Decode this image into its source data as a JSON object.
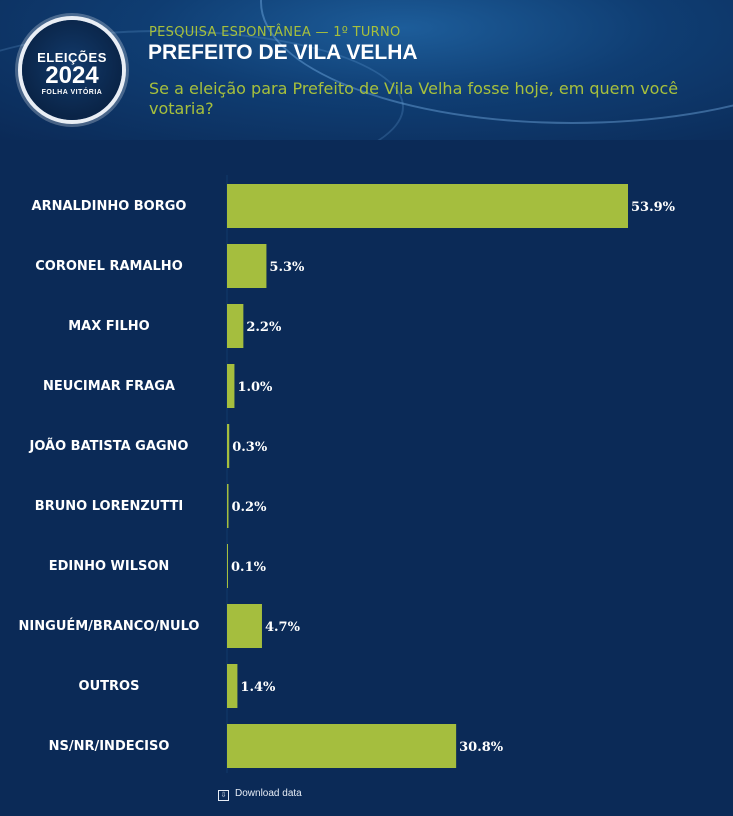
{
  "header": {
    "logo": {
      "line1": "ELEIÇÕES",
      "line2": "2024",
      "line3": "FOLHA VITÓRIA"
    },
    "kicker": "PESQUISA ESPONTÂNEA — 1º TURNO",
    "title": "PREFEITO DE VILA VELHA",
    "question": "Se a eleição para Prefeito de Vila Velha fosse hoje, em quem você votaria?"
  },
  "chart_data": {
    "type": "bar",
    "orientation": "horizontal",
    "categories": [
      "ARNALDINHO BORGO",
      "CORONEL RAMALHO",
      "MAX FILHO",
      "NEUCIMAR FRAGA",
      "JOÃO BATISTA GAGNO",
      "BRUNO LORENZUTTI",
      "EDINHO WILSON",
      "NINGUÉM/BRANCO/NULO",
      "OUTROS",
      "NS/NR/INDECISO"
    ],
    "values": [
      53.9,
      5.3,
      2.2,
      1.0,
      0.3,
      0.2,
      0.1,
      4.7,
      1.4,
      30.8
    ],
    "value_labels": [
      "53.9%",
      "5.3%",
      "2.2%",
      "1.0%",
      "0.3%",
      "0.2%",
      "0.1%",
      "4.7%",
      "1.4%",
      "30.8%"
    ],
    "bar_color": "#a5be3e",
    "grid": false,
    "legend": "none"
  },
  "footer": {
    "download_label": "Download data"
  },
  "colors": {
    "background": "#0b2a57",
    "accent": "#a7c03c",
    "text": "#ffffff"
  }
}
